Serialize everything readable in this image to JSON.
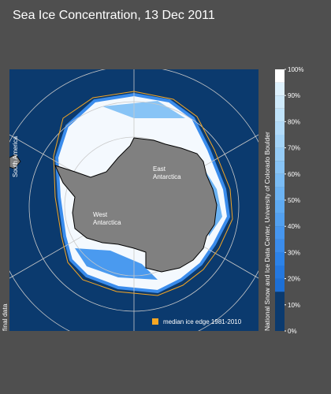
{
  "title": "Sea Ice Concentration, 13 Dec 2011",
  "map": {
    "labels": [
      {
        "lines": [
          "East",
          "Antarctica"
        ]
      },
      {
        "lines": [
          "West",
          "Antarctica"
        ]
      }
    ],
    "south_america": "South America",
    "legend": "median ice edge 1981-2010",
    "side_note": "final data",
    "credit": "National Snow and Ice Data Center, University of Colorado Boulder"
  },
  "colorbar": {
    "range": [
      0,
      100
    ],
    "ticks": [
      {
        "value": 0,
        "label": "0%"
      },
      {
        "value": 10,
        "label": "10%"
      },
      {
        "value": 20,
        "label": "20%"
      },
      {
        "value": 30,
        "label": "30%"
      },
      {
        "value": 40,
        "label": "40%"
      },
      {
        "value": 50,
        "label": "50%"
      },
      {
        "value": 60,
        "label": "60%"
      },
      {
        "value": 70,
        "label": "70%"
      },
      {
        "value": 80,
        "label": "80%"
      },
      {
        "value": 90,
        "label": "90%"
      },
      {
        "value": 100,
        "label": "100%"
      }
    ],
    "bands": [
      {
        "from": 0,
        "to": 15,
        "color": "#0b3a6e"
      },
      {
        "from": 15,
        "to": 20,
        "color": "#1c6fd6"
      },
      {
        "from": 20,
        "to": 25,
        "color": "#2478e0"
      },
      {
        "from": 25,
        "to": 30,
        "color": "#2c82e8"
      },
      {
        "from": 30,
        "to": 35,
        "color": "#3a8cec"
      },
      {
        "from": 35,
        "to": 40,
        "color": "#4696ef"
      },
      {
        "from": 40,
        "to": 45,
        "color": "#52a0f0"
      },
      {
        "from": 45,
        "to": 50,
        "color": "#5eaaf2"
      },
      {
        "from": 50,
        "to": 55,
        "color": "#6cb3f3"
      },
      {
        "from": 55,
        "to": 60,
        "color": "#7abcf5"
      },
      {
        "from": 60,
        "to": 65,
        "color": "#88c4f6"
      },
      {
        "from": 65,
        "to": 70,
        "color": "#96ccf7"
      },
      {
        "from": 70,
        "to": 75,
        "color": "#a4d4f8"
      },
      {
        "from": 75,
        "to": 80,
        "color": "#b2dbf9"
      },
      {
        "from": 80,
        "to": 85,
        "color": "#c0e3fa"
      },
      {
        "from": 85,
        "to": 90,
        "color": "#cfeafb"
      },
      {
        "from": 90,
        "to": 95,
        "color": "#def1fc"
      },
      {
        "from": 95,
        "to": 100,
        "color": "#ffffff"
      }
    ]
  }
}
